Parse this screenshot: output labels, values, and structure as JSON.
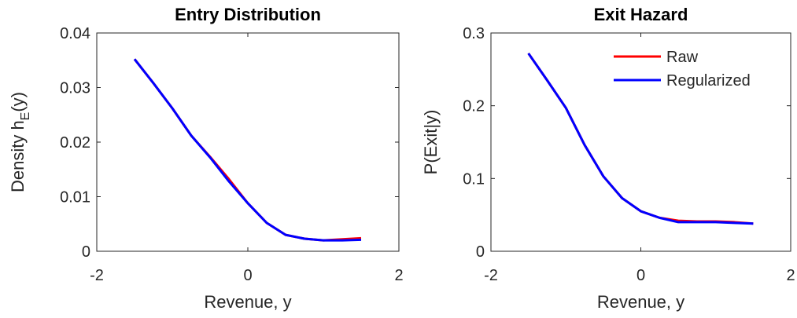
{
  "chart_data": [
    {
      "type": "line",
      "title": "Entry Distribution",
      "xlabel": "Revenue, y",
      "ylabel": [
        "Density h",
        "E",
        "(y)"
      ],
      "x": [
        -1.5,
        -1.25,
        -1.0,
        -0.75,
        -0.5,
        -0.25,
        0,
        0.25,
        0.5,
        0.75,
        1.0,
        1.25,
        1.5
      ],
      "series": [
        {
          "name": "Raw",
          "color": "#ff0000",
          "values": [
            0.0352,
            0.0308,
            0.0262,
            0.0212,
            0.0173,
            0.0132,
            0.0088,
            0.0052,
            0.003,
            0.0023,
            0.002,
            0.0022,
            0.0024
          ]
        },
        {
          "name": "Regularized",
          "color": "#0000ff",
          "values": [
            0.0352,
            0.0308,
            0.0262,
            0.0212,
            0.0172,
            0.0128,
            0.0088,
            0.0052,
            0.003,
            0.0023,
            0.002,
            0.002,
            0.0021
          ]
        }
      ],
      "xlim": [
        -2,
        2
      ],
      "xticks": [
        -2,
        0,
        2
      ],
      "ylim": [
        0,
        0.04
      ],
      "yticks": [
        0,
        0.01,
        0.02,
        0.03,
        0.04
      ],
      "legend": false
    },
    {
      "type": "line",
      "title": "Exit Hazard",
      "xlabel": "Revenue, y",
      "ylabel": [
        "P(Exit|y)"
      ],
      "x": [
        -1.5,
        -1.25,
        -1.0,
        -0.75,
        -0.5,
        -0.25,
        0,
        0.25,
        0.5,
        0.75,
        1.0,
        1.25,
        1.5
      ],
      "series": [
        {
          "name": "Raw",
          "color": "#ff0000",
          "values": [
            0.272,
            0.235,
            0.197,
            0.146,
            0.103,
            0.073,
            0.055,
            0.046,
            0.042,
            0.041,
            0.041,
            0.04,
            0.038
          ]
        },
        {
          "name": "Regularized",
          "color": "#0000ff",
          "values": [
            0.272,
            0.235,
            0.197,
            0.146,
            0.103,
            0.073,
            0.055,
            0.046,
            0.04,
            0.04,
            0.04,
            0.039,
            0.038
          ]
        }
      ],
      "xlim": [
        -2,
        2
      ],
      "xticks": [
        -2,
        0,
        2
      ],
      "ylim": [
        0,
        0.3
      ],
      "yticks": [
        0,
        0.1,
        0.2,
        0.3
      ],
      "legend": "northeast"
    }
  ]
}
